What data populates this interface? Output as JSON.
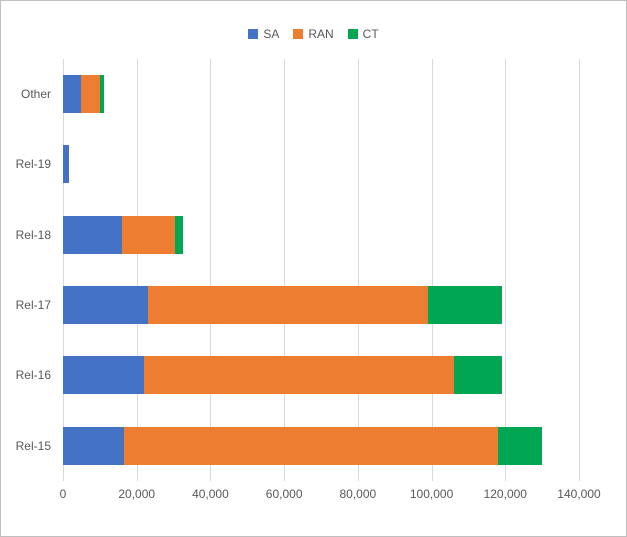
{
  "chart_data": {
    "type": "bar",
    "orientation": "horizontal",
    "stacked": true,
    "title": "",
    "xlabel": "",
    "ylabel": "",
    "grid": true,
    "legend_position": "top",
    "xlim": [
      0,
      140000
    ],
    "x_ticks": [
      "0",
      "20,000",
      "40,000",
      "60,000",
      "80,000",
      "100,000",
      "120,000",
      "140,000"
    ],
    "categories": [
      "Other",
      "Rel-19",
      "Rel-18",
      "Rel-17",
      "Rel-16",
      "Rel-15"
    ],
    "series": [
      {
        "name": "SA",
        "color": "#4472C4",
        "values": [
          5000,
          1600,
          16000,
          23000,
          22000,
          16500
        ]
      },
      {
        "name": "RAN",
        "color": "#ED7D31",
        "values": [
          5000,
          0,
          14500,
          76000,
          84000,
          101500
        ]
      },
      {
        "name": "CT",
        "color": "#00A651",
        "values": [
          1200,
          0,
          2000,
          20000,
          13000,
          12000
        ]
      }
    ]
  },
  "colors": {
    "grid": "#d9d9d9",
    "text": "#595959",
    "frame_border": "#bfbfbf",
    "background": "#ffffff"
  }
}
